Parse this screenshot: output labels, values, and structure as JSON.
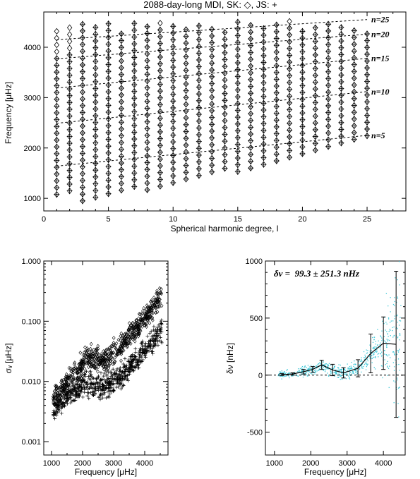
{
  "chart_data": [
    {
      "type": "scatter",
      "title": "2088-day-long MDI, SK: ◇, JS: +",
      "xlabel": "Spherical harmonic degree, l",
      "ylabel": "Frequency [μHz]",
      "xlim": [
        0,
        28
      ],
      "ylim": [
        750,
        4700
      ],
      "xticks": [
        0,
        5,
        10,
        15,
        20,
        25
      ],
      "yticks": [
        1000,
        2000,
        3000,
        4000
      ],
      "grid": false,
      "series": [
        {
          "name": "SK",
          "marker": "diamond",
          "l_range": [
            1,
            25
          ],
          "n_range": [
            4,
            28
          ]
        },
        {
          "name": "JS",
          "marker": "plus",
          "l_range": [
            1,
            25
          ],
          "n_range": [
            4,
            28
          ]
        }
      ],
      "ridge_lines": [
        {
          "label": "n=5",
          "points": [
            [
              1,
              1640
            ],
            [
              25,
              2250
            ]
          ]
        },
        {
          "label": "n=10",
          "points": [
            [
              1,
              2490
            ],
            [
              25,
              3120
            ]
          ]
        },
        {
          "label": "n=15",
          "points": [
            [
              1,
              3190
            ],
            [
              25,
              3780
            ]
          ]
        },
        {
          "label": "n=20",
          "points": [
            [
              1,
              3770
            ],
            [
              25,
              4260
            ]
          ]
        },
        {
          "label": "n=25",
          "points": [
            [
              1,
              4150
            ],
            [
              25,
              4550
            ]
          ]
        }
      ]
    },
    {
      "type": "scatter",
      "xlabel": "Frequency [μHz]",
      "ylabel": "σᵥ [μHz]",
      "xlim": [
        750,
        4750
      ],
      "ylim": [
        0.0006,
        1.0
      ],
      "yscale": "log",
      "xticks": [
        1000,
        2000,
        3000,
        4000
      ],
      "yticks": [
        0.001,
        0.01,
        0.1,
        1.0
      ],
      "ytick_labels": [
        "0.001",
        "0.010",
        "0.100",
        "1.000"
      ],
      "grid": false,
      "series": [
        {
          "name": "SK",
          "marker": "diamond",
          "trend": [
            [
              1100,
              0.005
            ],
            [
              1700,
              0.013
            ],
            [
              2200,
              0.025
            ],
            [
              2700,
              0.023
            ],
            [
              3200,
              0.035
            ],
            [
              3700,
              0.07
            ],
            [
              4200,
              0.15
            ],
            [
              4500,
              0.25
            ]
          ]
        },
        {
          "name": "JS",
          "marker": "plus",
          "trend": [
            [
              1100,
              0.0035
            ],
            [
              1700,
              0.007
            ],
            [
              2200,
              0.009
            ],
            [
              2700,
              0.008
            ],
            [
              3200,
              0.012
            ],
            [
              3700,
              0.022
            ],
            [
              4200,
              0.045
            ],
            [
              4500,
              0.07
            ]
          ]
        }
      ]
    },
    {
      "type": "line",
      "annotation": "δν =  99.3 ± 251.3 nHz",
      "xlabel": "Frequency [μHz]",
      "ylabel": "δν [nHz]",
      "xlim": [
        750,
        4600
      ],
      "ylim": [
        -700,
        1000
      ],
      "xticks": [
        1000,
        2000,
        3000,
        4000
      ],
      "yticks": [
        -500,
        0,
        500,
        1000
      ],
      "grid": false,
      "scatter_color": "#3ec8d8",
      "reference_line": 0,
      "x": [
        1200,
        1500,
        1800,
        2050,
        2300,
        2600,
        2900,
        3300,
        3650,
        4000,
        4350
      ],
      "y": [
        5,
        10,
        30,
        50,
        90,
        45,
        20,
        60,
        190,
        280,
        270
      ],
      "yerr": [
        8,
        10,
        20,
        25,
        40,
        50,
        45,
        75,
        170,
        230,
        640
      ]
    }
  ]
}
